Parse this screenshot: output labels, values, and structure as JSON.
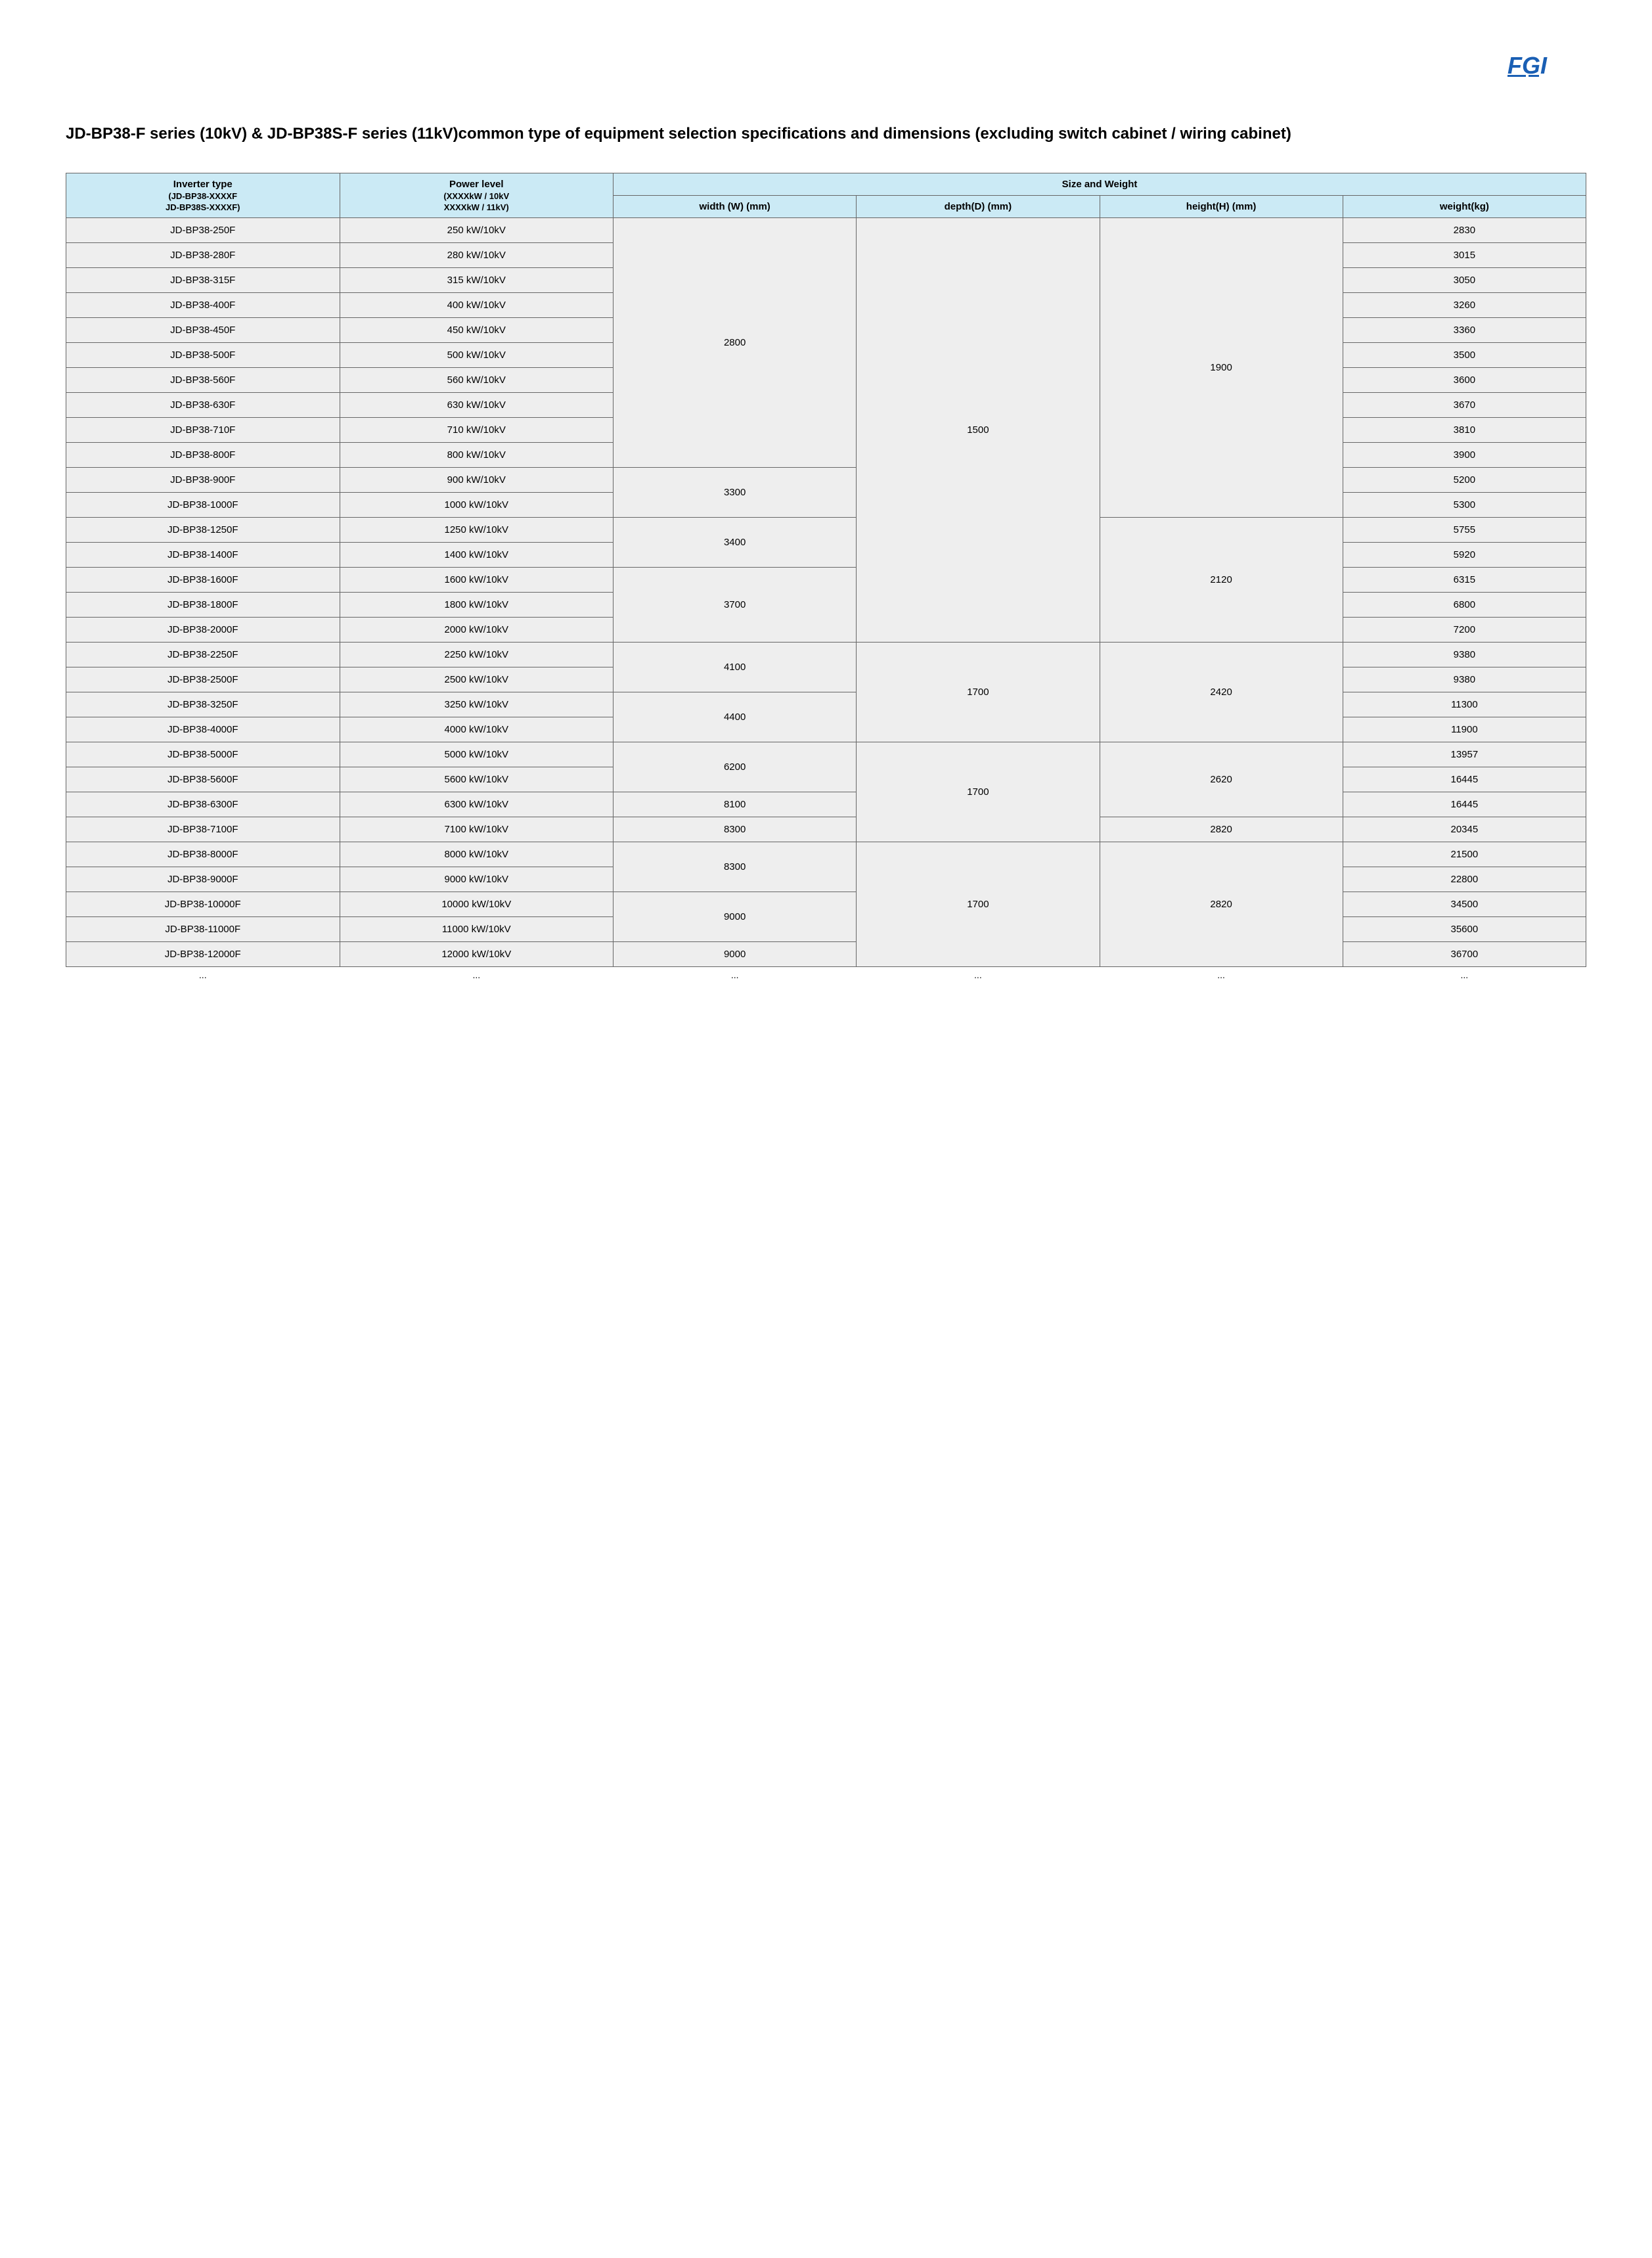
{
  "logo": {
    "text": "FGI",
    "primary_color": "#1a5fb4",
    "accent_color": "#1a5fb4"
  },
  "title": "JD-BP38-F series (10kV) & JD-BP38S-F series (11kV)common type of equipment selection specifications and dimensions (excluding switch cabinet / wiring cabinet)",
  "table": {
    "header_bg": "#cbeaf5",
    "body_bg": "#eeeeee",
    "border_color": "#666666",
    "columns": {
      "inverter_type": {
        "main": "Inverter type",
        "sub1": "(JD-BP38-XXXXF",
        "sub2": "JD-BP38S-XXXXF)"
      },
      "power_level": {
        "main": "Power level",
        "sub1": "(XXXXkW / 10kV",
        "sub2": "XXXXkW / 11kV)"
      },
      "size_weight": "Size and Weight",
      "width": "width (W) (mm)",
      "depth": "depth(D) (mm)",
      "height": "height(H) (mm)",
      "weight": "weight(kg)"
    },
    "rows": [
      {
        "type": "JD-BP38-250F",
        "power": "250 kW/10kV",
        "weight": "2830"
      },
      {
        "type": "JD-BP38-280F",
        "power": "280 kW/10kV",
        "weight": "3015"
      },
      {
        "type": "JD-BP38-315F",
        "power": "315 kW/10kV",
        "weight": "3050"
      },
      {
        "type": "JD-BP38-400F",
        "power": "400 kW/10kV",
        "weight": "3260"
      },
      {
        "type": "JD-BP38-450F",
        "power": "450 kW/10kV",
        "weight": "3360"
      },
      {
        "type": "JD-BP38-500F",
        "power": "500 kW/10kV",
        "weight": "3500"
      },
      {
        "type": "JD-BP38-560F",
        "power": "560 kW/10kV",
        "weight": "3600"
      },
      {
        "type": "JD-BP38-630F",
        "power": "630 kW/10kV",
        "weight": "3670"
      },
      {
        "type": "JD-BP38-710F",
        "power": "710 kW/10kV",
        "weight": "3810"
      },
      {
        "type": "JD-BP38-800F",
        "power": "800 kW/10kV",
        "weight": "3900"
      },
      {
        "type": "JD-BP38-900F",
        "power": "900 kW/10kV",
        "weight": "5200"
      },
      {
        "type": "JD-BP38-1000F",
        "power": "1000 kW/10kV",
        "weight": "5300"
      },
      {
        "type": "JD-BP38-1250F",
        "power": "1250 kW/10kV",
        "weight": "5755"
      },
      {
        "type": "JD-BP38-1400F",
        "power": "1400 kW/10kV",
        "weight": "5920"
      },
      {
        "type": "JD-BP38-1600F",
        "power": "1600 kW/10kV",
        "weight": "6315"
      },
      {
        "type": "JD-BP38-1800F",
        "power": "1800 kW/10kV",
        "weight": "6800"
      },
      {
        "type": "JD-BP38-2000F",
        "power": "2000 kW/10kV",
        "weight": "7200"
      },
      {
        "type": "JD-BP38-2250F",
        "power": "2250 kW/10kV",
        "weight": "9380"
      },
      {
        "type": "JD-BP38-2500F",
        "power": "2500 kW/10kV",
        "weight": "9380"
      },
      {
        "type": "JD-BP38-3250F",
        "power": "3250 kW/10kV",
        "weight": "11300"
      },
      {
        "type": "JD-BP38-4000F",
        "power": "4000 kW/10kV",
        "weight": "11900"
      },
      {
        "type": "JD-BP38-5000F",
        "power": "5000 kW/10kV",
        "weight": "13957"
      },
      {
        "type": "JD-BP38-5600F",
        "power": "5600 kW/10kV",
        "weight": "16445"
      },
      {
        "type": "JD-BP38-6300F",
        "power": "6300 kW/10kV",
        "weight": "16445"
      },
      {
        "type": "JD-BP38-7100F",
        "power": "7100 kW/10kV",
        "weight": "20345"
      },
      {
        "type": "JD-BP38-8000F",
        "power": "8000 kW/10kV",
        "weight": "21500"
      },
      {
        "type": "JD-BP38-9000F",
        "power": "9000 kW/10kV",
        "weight": "22800"
      },
      {
        "type": "JD-BP38-10000F",
        "power": "10000 kW/10kV",
        "weight": "34500"
      },
      {
        "type": "JD-BP38-11000F",
        "power": "11000 kW/10kV",
        "weight": "35600"
      },
      {
        "type": "JD-BP38-12000F",
        "power": "12000 kW/10kV",
        "weight": "36700"
      }
    ],
    "width_groups": [
      {
        "value": "2800",
        "span": 10
      },
      {
        "value": "3300",
        "span": 2
      },
      {
        "value": "3400",
        "span": 2
      },
      {
        "value": "3700",
        "span": 3
      },
      {
        "value": "4100",
        "span": 2
      },
      {
        "value": "4400",
        "span": 2
      },
      {
        "value": "6200",
        "span": 2
      },
      {
        "value": "8100",
        "span": 1
      },
      {
        "value": "8300",
        "span": 1
      },
      {
        "value": "8300",
        "span": 2
      },
      {
        "value": "9000",
        "span": 2
      },
      {
        "value": "9000",
        "span": 1
      }
    ],
    "depth_groups": [
      {
        "value": "1500",
        "span": 17
      },
      {
        "value": "1700",
        "span": 4
      },
      {
        "value": "1700",
        "span": 4
      },
      {
        "value": "1700",
        "span": 5
      }
    ],
    "height_groups": [
      {
        "value": "1900",
        "span": 12
      },
      {
        "value": "2120",
        "span": 5
      },
      {
        "value": "2420",
        "span": 4
      },
      {
        "value": "2620",
        "span": 3
      },
      {
        "value": "2820",
        "span": 1
      },
      {
        "value": "2820",
        "span": 5
      }
    ],
    "ellipsis": "..."
  }
}
